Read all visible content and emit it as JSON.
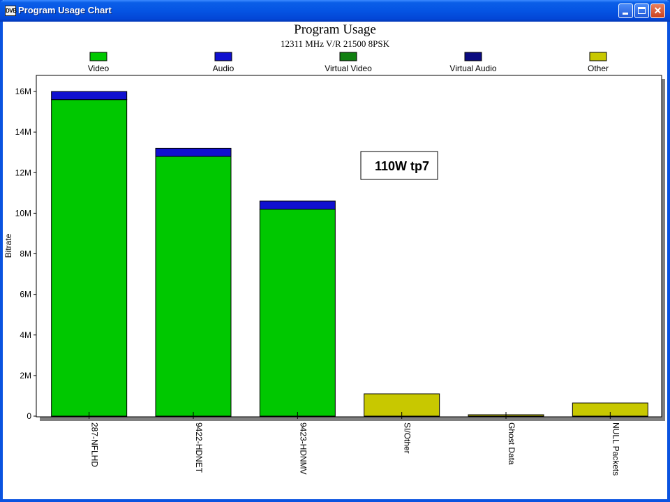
{
  "window": {
    "title": "Program Usage Chart",
    "app_icon_text": "DVB"
  },
  "chart_data": {
    "type": "bar",
    "stacked": true,
    "title": "Program Usage",
    "subtitle": "12311 MHz V/R 21500 8PSK",
    "annotation": "110W tp7",
    "xlabel": "",
    "ylabel": "Bitrate",
    "ylim": [
      0,
      16800000
    ],
    "yticks": [
      0,
      2000000,
      4000000,
      6000000,
      8000000,
      10000000,
      12000000,
      14000000,
      16000000
    ],
    "ytick_labels": [
      "0",
      "2M",
      "4M",
      "6M",
      "8M",
      "10M",
      "12M",
      "14M",
      "16M"
    ],
    "grid": false,
    "legend_position": "top",
    "categories": [
      "287-NFLHD",
      "9422-HDNET",
      "9423-HDNMV",
      "SI/Other",
      "Ghost Data",
      "NULL Packets"
    ],
    "series": [
      {
        "name": "Video",
        "color": "#00c800",
        "values": [
          15600000,
          12800000,
          10200000,
          0,
          0,
          0
        ]
      },
      {
        "name": "Audio",
        "color": "#1010d0",
        "values": [
          400000,
          400000,
          400000,
          0,
          0,
          0
        ]
      },
      {
        "name": "Virtual Video",
        "color": "#108010",
        "values": [
          0,
          0,
          0,
          0,
          0,
          0
        ]
      },
      {
        "name": "Virtual Audio",
        "color": "#0a0a80",
        "values": [
          0,
          0,
          0,
          0,
          0,
          0
        ]
      },
      {
        "name": "Other",
        "color": "#c8c800",
        "values": [
          0,
          0,
          0,
          1100000,
          60000,
          650000
        ]
      }
    ]
  }
}
